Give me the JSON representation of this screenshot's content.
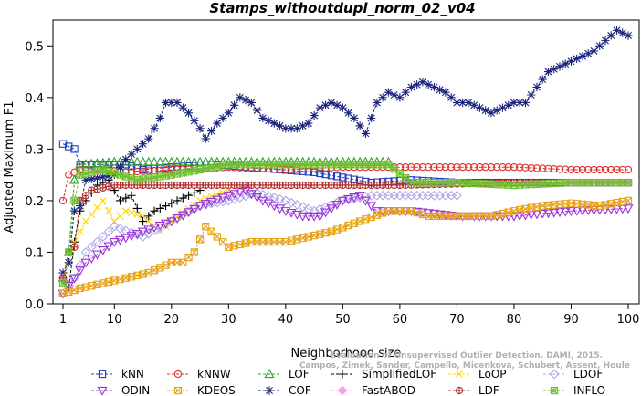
{
  "chart_data": {
    "type": "line",
    "title": "Stamps_withoutdupl_norm_02_v04",
    "xlabel": "Neighborhood size",
    "ylabel": "Adjusted Maximum F1",
    "xlim": [
      1,
      100
    ],
    "ylim": [
      0,
      0.55
    ],
    "xticks": [
      1,
      10,
      20,
      30,
      40,
      50,
      60,
      70,
      80,
      90,
      100
    ],
    "yticks": [
      0.0,
      0.1,
      0.2,
      0.3,
      0.4,
      0.5
    ],
    "grid": false,
    "legend_position": "bottom",
    "watermark": [
      "Evaluation of Unsupervised Outlier Detection. DAMI, 2015.",
      "Campos, Zimek, Sander, Campello, Micenkova, Schubert, Assent, Houle"
    ],
    "series": [
      {
        "name": "kNN",
        "color": "#1f3fbf",
        "marker": "square",
        "x_start": 1,
        "x_end": 100,
        "keypoints": [
          [
            1,
            0.31
          ],
          [
            2,
            0.305
          ],
          [
            3,
            0.3
          ],
          [
            4,
            0.27
          ],
          [
            10,
            0.27
          ],
          [
            12,
            0.27
          ],
          [
            15,
            0.26
          ],
          [
            20,
            0.265
          ],
          [
            28,
            0.27
          ],
          [
            45,
            0.255
          ],
          [
            55,
            0.235
          ],
          [
            62,
            0.24
          ],
          [
            70,
            0.235
          ],
          [
            80,
            0.235
          ],
          [
            90,
            0.235
          ],
          [
            100,
            0.235
          ]
        ]
      },
      {
        "name": "kNNW",
        "color": "#e0302a",
        "marker": "circle",
        "x_start": 1,
        "x_end": 100,
        "keypoints": [
          [
            1,
            0.2
          ],
          [
            2,
            0.25
          ],
          [
            4,
            0.26
          ],
          [
            8,
            0.26
          ],
          [
            12,
            0.255
          ],
          [
            20,
            0.26
          ],
          [
            30,
            0.265
          ],
          [
            40,
            0.26
          ],
          [
            50,
            0.265
          ],
          [
            60,
            0.265
          ],
          [
            70,
            0.265
          ],
          [
            80,
            0.265
          ],
          [
            90,
            0.26
          ],
          [
            100,
            0.26
          ]
        ]
      },
      {
        "name": "LOF",
        "color": "#30a030",
        "marker": "triangle-up",
        "x_start": 1,
        "x_end": 58,
        "keypoints": [
          [
            1,
            0.05
          ],
          [
            2,
            0.1
          ],
          [
            3,
            0.24
          ],
          [
            4,
            0.27
          ],
          [
            10,
            0.275
          ],
          [
            20,
            0.275
          ],
          [
            30,
            0.275
          ],
          [
            40,
            0.275
          ],
          [
            50,
            0.275
          ],
          [
            58,
            0.275
          ]
        ]
      },
      {
        "name": "SimplifiedLOF",
        "color": "#000000",
        "marker": "plus",
        "x_start": 1,
        "x_end": 25,
        "keypoints": [
          [
            1,
            0.05
          ],
          [
            2,
            0.03
          ],
          [
            3,
            0.12
          ],
          [
            4,
            0.18
          ],
          [
            5,
            0.2
          ],
          [
            7,
            0.23
          ],
          [
            9,
            0.24
          ],
          [
            11,
            0.2
          ],
          [
            13,
            0.21
          ],
          [
            15,
            0.16
          ],
          [
            17,
            0.18
          ],
          [
            19,
            0.19
          ],
          [
            21,
            0.2
          ],
          [
            23,
            0.21
          ],
          [
            25,
            0.22
          ]
        ]
      },
      {
        "name": "LoOP",
        "color": "#ffd700",
        "marker": "x",
        "x_start": 1,
        "x_end": 30,
        "keypoints": [
          [
            1,
            0.04
          ],
          [
            2,
            0.08
          ],
          [
            3,
            0.12
          ],
          [
            5,
            0.16
          ],
          [
            8,
            0.2
          ],
          [
            10,
            0.16
          ],
          [
            12,
            0.18
          ],
          [
            15,
            0.17
          ],
          [
            18,
            0.14
          ],
          [
            20,
            0.16
          ],
          [
            25,
            0.2
          ],
          [
            30,
            0.22
          ]
        ]
      },
      {
        "name": "LDOF",
        "color": "#b0a8e8",
        "marker": "diamond",
        "x_start": 1,
        "x_end": 70,
        "keypoints": [
          [
            1,
            0.02
          ],
          [
            3,
            0.05
          ],
          [
            5,
            0.1
          ],
          [
            10,
            0.15
          ],
          [
            15,
            0.13
          ],
          [
            20,
            0.16
          ],
          [
            25,
            0.19
          ],
          [
            30,
            0.2
          ],
          [
            35,
            0.215
          ],
          [
            40,
            0.2
          ],
          [
            45,
            0.18
          ],
          [
            50,
            0.2
          ],
          [
            55,
            0.21
          ],
          [
            60,
            0.21
          ],
          [
            65,
            0.21
          ],
          [
            70,
            0.21
          ]
        ]
      },
      {
        "name": "ODIN",
        "color": "#9b30d9",
        "marker": "triangle-down",
        "x_start": 1,
        "x_end": 100,
        "keypoints": [
          [
            1,
            0.02
          ],
          [
            3,
            0.05
          ],
          [
            5,
            0.08
          ],
          [
            10,
            0.12
          ],
          [
            15,
            0.14
          ],
          [
            20,
            0.16
          ],
          [
            25,
            0.19
          ],
          [
            30,
            0.21
          ],
          [
            33,
            0.22
          ],
          [
            36,
            0.2
          ],
          [
            40,
            0.18
          ],
          [
            43,
            0.17
          ],
          [
            46,
            0.17
          ],
          [
            50,
            0.2
          ],
          [
            53,
            0.21
          ],
          [
            56,
            0.18
          ],
          [
            62,
            0.18
          ],
          [
            70,
            0.17
          ],
          [
            80,
            0.17
          ],
          [
            90,
            0.18
          ],
          [
            100,
            0.185
          ]
        ]
      },
      {
        "name": "KDEOS",
        "color": "#e8a317",
        "marker": "square-x",
        "x_start": 1,
        "x_end": 100,
        "keypoints": [
          [
            1,
            0.02
          ],
          [
            4,
            0.03
          ],
          [
            8,
            0.04
          ],
          [
            12,
            0.05
          ],
          [
            16,
            0.06
          ],
          [
            20,
            0.08
          ],
          [
            22,
            0.08
          ],
          [
            24,
            0.1
          ],
          [
            26,
            0.15
          ],
          [
            28,
            0.13
          ],
          [
            30,
            0.11
          ],
          [
            34,
            0.12
          ],
          [
            40,
            0.12
          ],
          [
            48,
            0.14
          ],
          [
            53,
            0.16
          ],
          [
            58,
            0.18
          ],
          [
            62,
            0.18
          ],
          [
            65,
            0.17
          ],
          [
            70,
            0.17
          ],
          [
            76,
            0.17
          ],
          [
            80,
            0.18
          ],
          [
            85,
            0.19
          ],
          [
            90,
            0.195
          ],
          [
            95,
            0.19
          ],
          [
            100,
            0.2
          ]
        ]
      },
      {
        "name": "COF",
        "color": "#1a237e",
        "marker": "asterisk",
        "x_start": 1,
        "x_end": 100,
        "keypoints": [
          [
            1,
            0.06
          ],
          [
            2,
            0.08
          ],
          [
            3,
            0.18
          ],
          [
            4,
            0.19
          ],
          [
            5,
            0.24
          ],
          [
            10,
            0.25
          ],
          [
            12,
            0.28
          ],
          [
            14,
            0.3
          ],
          [
            16,
            0.32
          ],
          [
            18,
            0.36
          ],
          [
            19,
            0.39
          ],
          [
            21,
            0.39
          ],
          [
            23,
            0.37
          ],
          [
            25,
            0.34
          ],
          [
            26,
            0.32
          ],
          [
            28,
            0.35
          ],
          [
            30,
            0.37
          ],
          [
            32,
            0.4
          ],
          [
            34,
            0.39
          ],
          [
            36,
            0.36
          ],
          [
            38,
            0.35
          ],
          [
            40,
            0.34
          ],
          [
            42,
            0.34
          ],
          [
            44,
            0.35
          ],
          [
            46,
            0.38
          ],
          [
            48,
            0.39
          ],
          [
            50,
            0.38
          ],
          [
            52,
            0.36
          ],
          [
            54,
            0.33
          ],
          [
            56,
            0.39
          ],
          [
            58,
            0.41
          ],
          [
            60,
            0.4
          ],
          [
            62,
            0.42
          ],
          [
            64,
            0.43
          ],
          [
            66,
            0.42
          ],
          [
            68,
            0.41
          ],
          [
            70,
            0.39
          ],
          [
            72,
            0.39
          ],
          [
            74,
            0.38
          ],
          [
            76,
            0.37
          ],
          [
            78,
            0.38
          ],
          [
            80,
            0.39
          ],
          [
            82,
            0.39
          ],
          [
            84,
            0.42
          ],
          [
            86,
            0.45
          ],
          [
            88,
            0.46
          ],
          [
            90,
            0.47
          ],
          [
            92,
            0.48
          ],
          [
            94,
            0.49
          ],
          [
            96,
            0.51
          ],
          [
            98,
            0.53
          ],
          [
            100,
            0.52
          ]
        ]
      },
      {
        "name": "FastABOD",
        "color": "#f4a0f0",
        "marker": "diamond-filled",
        "x_start": 1,
        "x_end": 1,
        "keypoints": [
          [
            1,
            0.05
          ]
        ]
      },
      {
        "name": "LDF",
        "color": "#b03030",
        "marker": "circle-plus",
        "x_start": 1,
        "x_end": 100,
        "keypoints": [
          [
            1,
            0.05
          ],
          [
            2,
            0.1
          ],
          [
            3,
            0.11
          ],
          [
            4,
            0.2
          ],
          [
            6,
            0.22
          ],
          [
            10,
            0.23
          ],
          [
            20,
            0.23
          ],
          [
            40,
            0.23
          ],
          [
            60,
            0.23
          ],
          [
            80,
            0.235
          ],
          [
            100,
            0.235
          ]
        ]
      },
      {
        "name": "INFLO",
        "color": "#70c030",
        "marker": "square-star",
        "x_start": 1,
        "x_end": 100,
        "keypoints": [
          [
            1,
            0.04
          ],
          [
            2,
            0.1
          ],
          [
            3,
            0.2
          ],
          [
            4,
            0.25
          ],
          [
            8,
            0.26
          ],
          [
            14,
            0.24
          ],
          [
            20,
            0.25
          ],
          [
            30,
            0.27
          ],
          [
            40,
            0.27
          ],
          [
            50,
            0.27
          ],
          [
            58,
            0.27
          ],
          [
            62,
            0.235
          ],
          [
            70,
            0.235
          ],
          [
            80,
            0.23
          ],
          [
            90,
            0.235
          ],
          [
            100,
            0.235
          ]
        ]
      }
    ]
  }
}
